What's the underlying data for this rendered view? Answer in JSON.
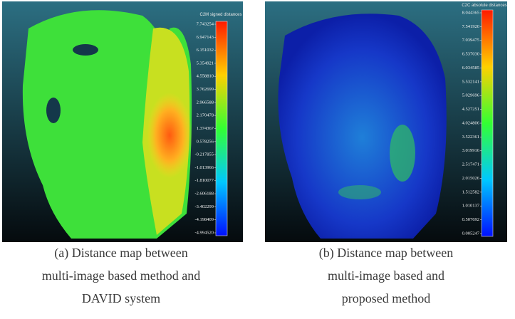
{
  "panels": [
    {
      "scale_title": "C2M signed distances",
      "scale_labels": [
        "7.743254",
        "6.947143",
        "6.151032",
        "5.354921",
        "4.558810",
        "3.762699",
        "2.966588",
        "2.170478",
        "1.374367",
        "0.578256",
        "-0.217855",
        "-1.013966",
        "-1.810077",
        "-2.606188",
        "-3.402299",
        "-4.198409",
        "-4.994520"
      ],
      "caption": [
        "(a) Distance map between",
        "multi-image based method and",
        "DAVID system"
      ]
    },
    {
      "scale_title": "C2C absolute distances",
      "scale_labels": [
        "8.044365",
        "7.541920",
        "7.039475",
        "6.537030",
        "6.034585",
        "5.532141",
        "5.029696",
        "4.527251",
        "4.024806",
        "3.522361",
        "3.019916",
        "2.517471",
        "2.015026",
        "1.512582",
        "1.010137",
        "0.507692",
        "0.005247"
      ],
      "caption": [
        "(b) Distance map between",
        "multi-image based and",
        "proposed method"
      ]
    }
  ]
}
